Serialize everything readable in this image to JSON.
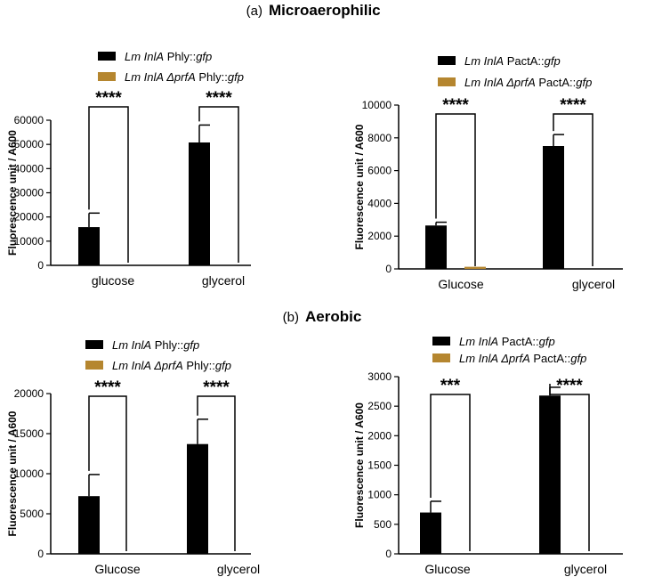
{
  "sections": [
    {
      "letter": "(a)",
      "title": "Microaerophilic"
    },
    {
      "letter": "(b)",
      "title": "Aerobic"
    }
  ],
  "colors": {
    "series1": "#000000",
    "series2": "#b5862f",
    "axis": "#000000"
  },
  "chart_data": [
    {
      "type": "bar",
      "section": "Microaerophilic",
      "ylabel": "Fluorescence unit / A600",
      "categories": [
        "glucose",
        "glycerol"
      ],
      "ylim": [
        0,
        60000
      ],
      "yticks": [
        0,
        10000,
        20000,
        30000,
        40000,
        50000,
        60000
      ],
      "series": [
        {
          "name_italic": "Lm InlA",
          "name_plain": " Phly::",
          "name_italic2": "gfp",
          "color": "#000000",
          "values": [
            15800,
            50800
          ],
          "errors": [
            5800,
            7200
          ]
        },
        {
          "name_italic": "Lm InlA ΔprfA",
          "name_plain": " Phly::",
          "name_italic2": "gfp",
          "color": "#b5862f",
          "values": [
            0,
            0
          ],
          "errors": [
            0,
            0
          ]
        }
      ],
      "significance": [
        "****",
        "****"
      ]
    },
    {
      "type": "bar",
      "section": "Microaerophilic",
      "ylabel": "Fluorescence unit / A600",
      "categories": [
        "Glucose",
        "glycerol"
      ],
      "ylim": [
        0,
        10000
      ],
      "yticks": [
        0,
        2000,
        4000,
        6000,
        8000,
        10000
      ],
      "series": [
        {
          "name_italic": "Lm InlA",
          "name_plain": " PactA::",
          "name_italic2": "gfp",
          "color": "#000000",
          "values": [
            2650,
            7500
          ],
          "errors": [
            200,
            700
          ]
        },
        {
          "name_italic": "Lm InlA ΔprfA",
          "name_plain": " PactA::",
          "name_italic2": "gfp",
          "color": "#b5862f",
          "values": [
            130,
            0
          ],
          "errors": [
            0,
            0
          ]
        }
      ],
      "significance": [
        "****",
        "****"
      ]
    },
    {
      "type": "bar",
      "section": "Aerobic",
      "ylabel": "Fluorescence unit / A600",
      "categories": [
        "Glucose",
        "glycerol"
      ],
      "ylim": [
        0,
        20000
      ],
      "yticks": [
        0,
        5000,
        10000,
        15000,
        20000
      ],
      "series": [
        {
          "name_italic": "Lm InlA",
          "name_plain": " Phly::",
          "name_italic2": "gfp",
          "color": "#000000",
          "values": [
            7200,
            13700
          ],
          "errors": [
            2700,
            3100
          ]
        },
        {
          "name_italic": "Lm InlA ΔprfA",
          "name_plain": " Phly::",
          "name_italic2": "gfp",
          "color": "#b5862f",
          "values": [
            0,
            0
          ],
          "errors": [
            0,
            0
          ]
        }
      ],
      "significance": [
        "****",
        "****"
      ]
    },
    {
      "type": "bar",
      "section": "Aerobic",
      "ylabel": "Fluorescence unit / A600",
      "categories": [
        "Glucose",
        "glycerol"
      ],
      "ylim": [
        0,
        3000
      ],
      "yticks": [
        0,
        500,
        1000,
        1500,
        2000,
        2500,
        3000
      ],
      "series": [
        {
          "name_italic": "Lm InlA",
          "name_plain": " PactA::",
          "name_italic2": "gfp",
          "color": "#000000",
          "values": [
            700,
            2680
          ],
          "errors": [
            190,
            140
          ]
        },
        {
          "name_italic": "Lm InlA ΔprfA",
          "name_plain": " PactA::",
          "name_italic2": "gfp",
          "color": "#b5862f",
          "values": [
            0,
            0
          ],
          "errors": [
            0,
            0
          ]
        }
      ],
      "significance": [
        "***",
        "****"
      ]
    }
  ]
}
